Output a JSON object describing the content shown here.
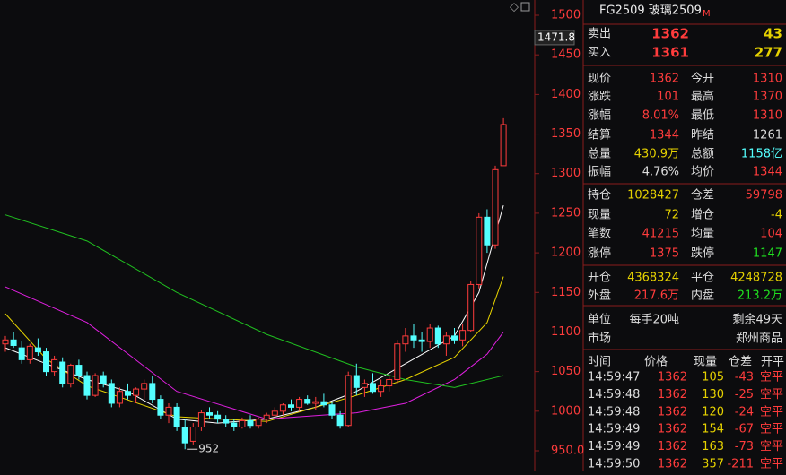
{
  "chart_data": {
    "type": "candlestick",
    "ylim": [
      950,
      1500
    ],
    "yticks": [
      1500,
      1450,
      1400,
      1350,
      1300,
      1250,
      1200,
      1150,
      1100,
      1050,
      1000,
      {
        "value": 950,
        "label": "950.0"
      }
    ],
    "cursor_price": 1471.8,
    "low_label": 952,
    "up_color": "#ff3c3c",
    "down_color": "#54ffff",
    "candles": [
      [
        1085,
        1095,
        1075,
        1090
      ],
      [
        1090,
        1100,
        1080,
        1083
      ],
      [
        1080,
        1088,
        1060,
        1065
      ],
      [
        1065,
        1085,
        1060,
        1082
      ],
      [
        1080,
        1092,
        1070,
        1075
      ],
      [
        1075,
        1080,
        1045,
        1050
      ],
      [
        1050,
        1070,
        1045,
        1065
      ],
      [
        1062,
        1068,
        1030,
        1035
      ],
      [
        1035,
        1060,
        1030,
        1058
      ],
      [
        1058,
        1065,
        1040,
        1045
      ],
      [
        1045,
        1050,
        1015,
        1020
      ],
      [
        1020,
        1048,
        1018,
        1045
      ],
      [
        1045,
        1050,
        1030,
        1035
      ],
      [
        1035,
        1040,
        1005,
        1010
      ],
      [
        1010,
        1030,
        1005,
        1025
      ],
      [
        1025,
        1035,
        1015,
        1020
      ],
      [
        1020,
        1030,
        1010,
        1028
      ],
      [
        1028,
        1040,
        1015,
        1035
      ],
      [
        1035,
        1045,
        1010,
        1015
      ],
      [
        1015,
        1020,
        990,
        995
      ],
      [
        995,
        1010,
        985,
        1005
      ],
      [
        1005,
        1010,
        975,
        980
      ],
      [
        980,
        990,
        952,
        960
      ],
      [
        962,
        985,
        958,
        980
      ],
      [
        980,
        1002,
        975,
        998
      ],
      [
        998,
        1005,
        990,
        995
      ],
      [
        995,
        1000,
        985,
        990
      ],
      [
        990,
        995,
        980,
        985
      ],
      [
        985,
        990,
        975,
        980
      ],
      [
        980,
        992,
        978,
        988
      ],
      [
        988,
        995,
        978,
        982
      ],
      [
        982,
        992,
        978,
        990
      ],
      [
        990,
        998,
        985,
        995
      ],
      [
        995,
        1005,
        990,
        1000
      ],
      [
        1000,
        1010,
        995,
        1008
      ],
      [
        1008,
        1015,
        1000,
        1005
      ],
      [
        1005,
        1018,
        1000,
        1015
      ],
      [
        1015,
        1020,
        1008,
        1010
      ],
      [
        1010,
        1018,
        1002,
        1012
      ],
      [
        1012,
        1022,
        1005,
        1008
      ],
      [
        1008,
        1012,
        990,
        995
      ],
      [
        995,
        1000,
        978,
        982
      ],
      [
        982,
        1050,
        980,
        1045
      ],
      [
        1045,
        1060,
        1020,
        1030
      ],
      [
        1030,
        1040,
        1018,
        1035
      ],
      [
        1035,
        1048,
        1022,
        1025
      ],
      [
        1025,
        1040,
        1018,
        1032
      ],
      [
        1032,
        1045,
        1025,
        1040
      ],
      [
        1040,
        1090,
        1035,
        1085
      ],
      [
        1085,
        1105,
        1075,
        1095
      ],
      [
        1095,
        1110,
        1080,
        1090
      ],
      [
        1090,
        1100,
        1075,
        1088
      ],
      [
        1088,
        1110,
        1080,
        1105
      ],
      [
        1105,
        1108,
        1080,
        1085
      ],
      [
        1085,
        1100,
        1070,
        1095
      ],
      [
        1095,
        1105,
        1085,
        1090
      ],
      [
        1090,
        1110,
        1082,
        1102
      ],
      [
        1102,
        1165,
        1100,
        1160
      ],
      [
        1160,
        1250,
        1155,
        1245
      ],
      [
        1245,
        1255,
        1200,
        1210
      ],
      [
        1210,
        1310,
        1205,
        1305
      ],
      [
        1310,
        1370,
        1310,
        1362
      ]
    ],
    "lines": [
      {
        "color": "#ffffff",
        "x": [
          0,
          5,
          10,
          15,
          21,
          26,
          32,
          38,
          43,
          49,
          55,
          58,
          61
        ],
        "values": [
          1080,
          1060,
          1040,
          1025,
          990,
          985,
          990,
          1005,
          1025,
          1060,
          1095,
          1150,
          1260
        ]
      },
      {
        "color": "#e6d200",
        "x": [
          0,
          5,
          10,
          21,
          32,
          43,
          49,
          55,
          59,
          61
        ],
        "values": [
          1123,
          1066,
          1032,
          993,
          987,
          1020,
          1040,
          1068,
          1112,
          1170
        ]
      },
      {
        "color": "#e020e0",
        "x": [
          0,
          10,
          21,
          32,
          43,
          49,
          55,
          59,
          61
        ],
        "values": [
          1157,
          1112,
          1025,
          990,
          998,
          1010,
          1040,
          1072,
          1100
        ]
      },
      {
        "color": "#20c020",
        "x": [
          0,
          10,
          21,
          32,
          43,
          49,
          55,
          61
        ],
        "values": [
          1248,
          1215,
          1150,
          1097,
          1056,
          1040,
          1030,
          1045
        ]
      }
    ]
  },
  "panel": {
    "code": "FG2509 玻璃2509",
    "market_flag": "M",
    "book": [
      {
        "label": "卖出",
        "price": 1362,
        "volume": 43
      },
      {
        "label": "买入",
        "price": 1361,
        "volume": 277
      }
    ],
    "stats": [
      [
        {
          "label": "现价",
          "value": 1362,
          "color": "#ff3c3c"
        },
        {
          "label": "今开",
          "value": 1310,
          "color": "#ff3c3c"
        }
      ],
      [
        {
          "label": "涨跌",
          "value": 101,
          "color": "#ff3c3c"
        },
        {
          "label": "最高",
          "value": 1370,
          "color": "#ff3c3c"
        }
      ],
      [
        {
          "label": "涨幅",
          "value": "8.01%",
          "color": "#ff3c3c"
        },
        {
          "label": "最低",
          "value": 1310,
          "color": "#ff3c3c"
        }
      ],
      [
        {
          "label": "结算",
          "value": 1344,
          "color": "#ff3c3c"
        },
        {
          "label": "昨结",
          "value": 1261,
          "color": "#dddddd"
        }
      ],
      [
        {
          "label": "总量",
          "value": "430.9万",
          "color": "#e6d200"
        },
        {
          "label": "总额",
          "value": "1158亿",
          "color": "#54ffff"
        }
      ],
      [
        {
          "label": "振幅",
          "value": "4.76%",
          "color": "#dddddd"
        },
        {
          "label": "均价",
          "value": 1344,
          "color": "#ff3c3c"
        }
      ],
      [
        {
          "label": "持仓",
          "value": 1028427,
          "color": "#e6d200"
        },
        {
          "label": "仓差",
          "value": 59798,
          "color": "#ff3c3c"
        }
      ],
      [
        {
          "label": "现量",
          "value": 72,
          "color": "#e6d200"
        },
        {
          "label": "增仓",
          "value": -4,
          "color": "#e6d200"
        }
      ],
      [
        {
          "label": "笔数",
          "value": 41215,
          "color": "#ff3c3c"
        },
        {
          "label": "均量",
          "value": 104,
          "color": "#ff3c3c"
        }
      ],
      [
        {
          "label": "涨停",
          "value": 1375,
          "color": "#ff3c3c"
        },
        {
          "label": "跌停",
          "value": 1147,
          "color": "#20e020"
        }
      ],
      [
        {
          "label": "开仓",
          "value": 4368324,
          "color": "#e6d200"
        },
        {
          "label": "平仓",
          "value": 4248728,
          "color": "#e6d200"
        }
      ],
      [
        {
          "label": "外盘",
          "value": "217.6万",
          "color": "#ff3c3c"
        },
        {
          "label": "内盘",
          "value": "213.2万",
          "color": "#20e020"
        }
      ],
      [
        {
          "label": "单位",
          "value": "每手20吨",
          "color": "#dddddd"
        },
        {
          "label": "",
          "value": "剩余49天",
          "color": "#dddddd"
        }
      ],
      [
        {
          "label": "市场",
          "value": "",
          "color": "#dddddd"
        },
        {
          "label": "",
          "value": "郑州商品",
          "color": "#dddddd"
        }
      ]
    ],
    "trades_header": [
      "时间",
      "价格",
      "现量",
      "仓差",
      "开平"
    ],
    "trades": [
      [
        "14:59:47",
        1362,
        105,
        -43,
        "空平"
      ],
      [
        "14:59:48",
        1362,
        130,
        -25,
        "空平"
      ],
      [
        "14:59:48",
        1362,
        120,
        -24,
        "空平"
      ],
      [
        "14:59:49",
        1362,
        154,
        -67,
        "空平"
      ],
      [
        "14:59:49",
        1362,
        163,
        -73,
        "空平"
      ],
      [
        "14:59:50",
        1362,
        357,
        -211,
        "空平"
      ]
    ]
  }
}
